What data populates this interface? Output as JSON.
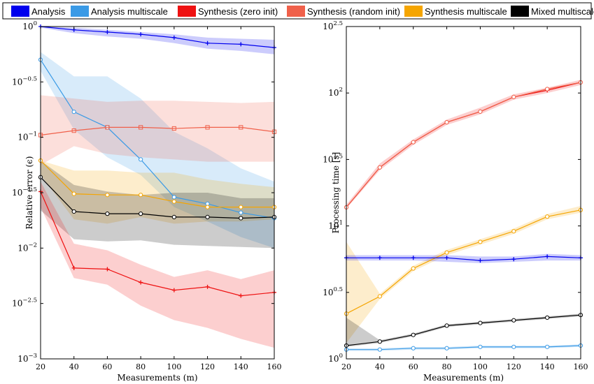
{
  "colors": {
    "analysis": "#0000ee",
    "analysis_multiscale": "#3a9ae6",
    "synthesis_zero": "#ee1111",
    "synthesis_random": "#f0604a",
    "synthesis_multiscale": "#f5a500",
    "mixed_multiscale": "#000000"
  },
  "legend": {
    "items": [
      {
        "key": "analysis",
        "label": "Analysis"
      },
      {
        "key": "analysis_multiscale",
        "label": "Analysis multiscale"
      },
      {
        "key": "synthesis_zero",
        "label": "Synthesis (zero init)"
      },
      {
        "key": "synthesis_random",
        "label": "Synthesis (random init)"
      },
      {
        "key": "synthesis_multiscale",
        "label": "Synthesis multiscale"
      },
      {
        "key": "mixed_multiscale",
        "label": "Mixed multiscale"
      }
    ]
  },
  "chart_data": [
    {
      "type": "line",
      "xlabel": "Measurements (m)",
      "ylabel": "Relative error (ϵ)",
      "xlim": [
        20,
        160
      ],
      "xticks": [
        20,
        40,
        60,
        80,
        100,
        120,
        140,
        160
      ],
      "ylim_log10": [
        -3,
        0
      ],
      "yscale": "log",
      "yticks": [
        {
          "exp": -3,
          "base": "10",
          "sup": "−3"
        },
        {
          "exp": -2.5,
          "base": "10",
          "sup": "−2.5"
        },
        {
          "exp": -2,
          "base": "10",
          "sup": "−2"
        },
        {
          "exp": -1.5,
          "base": "10",
          "sup": "−1.5"
        },
        {
          "exp": -1,
          "base": "10",
          "sup": "−1"
        },
        {
          "exp": -0.5,
          "base": "10",
          "sup": "−0.5"
        },
        {
          "exp": 0,
          "base": "10",
          "sup": "0"
        }
      ],
      "grid": false,
      "x": [
        20,
        40,
        60,
        80,
        100,
        120,
        140,
        160
      ],
      "series": [
        {
          "key": "analysis",
          "marker": "plus",
          "values_log10": [
            0,
            -0.03,
            -0.05,
            -0.07,
            -0.1,
            -0.15,
            -0.16,
            -0.19
          ],
          "band_upper_log10": [
            0,
            -0.01,
            -0.03,
            -0.05,
            -0.07,
            -0.1,
            -0.11,
            -0.12
          ],
          "band_lower_log10": [
            -0.01,
            -0.06,
            -0.09,
            -0.11,
            -0.15,
            -0.2,
            -0.22,
            -0.25
          ]
        },
        {
          "key": "analysis_multiscale",
          "marker": "circle",
          "values_log10": [
            -0.3,
            -0.77,
            -0.91,
            -1.2,
            -1.54,
            -1.6,
            -1.68,
            -1.73
          ],
          "band_upper_log10": [
            -0.23,
            -0.45,
            -0.45,
            -0.65,
            -0.95,
            -1.1,
            -1.28,
            -1.4
          ],
          "band_lower_log10": [
            -0.4,
            -0.93,
            -1.18,
            -1.34,
            -1.63,
            -1.76,
            -1.9,
            -2
          ]
        },
        {
          "key": "synthesis_random",
          "marker": "square",
          "values_log10": [
            -0.98,
            -0.94,
            -0.91,
            -0.91,
            -0.92,
            -0.91,
            -0.91,
            -0.95
          ],
          "band_upper_log10": [
            -0.62,
            -0.65,
            -0.68,
            -0.67,
            -0.67,
            -0.68,
            -0.69,
            -0.68
          ],
          "band_lower_log10": [
            -1.25,
            -1.08,
            -1.15,
            -1.18,
            -1.2,
            -1.22,
            -1.22,
            -1.22
          ]
        },
        {
          "key": "synthesis_multiscale",
          "marker": "circle",
          "values_log10": [
            -1.21,
            -1.51,
            -1.52,
            -1.52,
            -1.58,
            -1.63,
            -1.63,
            -1.63
          ],
          "band_upper_log10": [
            -1.21,
            -1.3,
            -1.3,
            -1.32,
            -1.32,
            -1.38,
            -1.42,
            -1.45
          ],
          "band_lower_log10": [
            -1.34,
            -1.74,
            -1.78,
            -1.72,
            -1.78,
            -1.76,
            -1.76,
            -1.74
          ]
        },
        {
          "key": "mixed_multiscale",
          "marker": "circle",
          "values_log10": [
            -1.36,
            -1.67,
            -1.69,
            -1.69,
            -1.72,
            -1.72,
            -1.73,
            -1.72
          ],
          "band_upper_log10": [
            -1.21,
            -1.43,
            -1.49,
            -1.52,
            -1.5,
            -1.5,
            -1.55,
            -1.55
          ],
          "band_lower_log10": [
            -1.66,
            -1.92,
            -1.94,
            -1.93,
            -1.97,
            -1.98,
            -1.99,
            -2
          ]
        },
        {
          "key": "synthesis_zero",
          "marker": "plus",
          "values_log10": [
            -1.49,
            -2.18,
            -2.19,
            -2.31,
            -2.38,
            -2.35,
            -2.43,
            -2.4
          ],
          "band_upper_log10": [
            -1.4,
            -1.96,
            -2.02,
            -2.15,
            -2.26,
            -2.2,
            -2.28,
            -2.2
          ],
          "band_lower_log10": [
            -1.63,
            -2.27,
            -2.33,
            -2.52,
            -2.65,
            -2.72,
            -2.82,
            -2.9
          ]
        }
      ]
    },
    {
      "type": "line",
      "xlabel": "Measurements (m)",
      "ylabel": "Processing time [s]",
      "xlim": [
        20,
        160
      ],
      "xticks": [
        20,
        40,
        60,
        80,
        100,
        120,
        140,
        160
      ],
      "ylim_log10": [
        0,
        2.5
      ],
      "yscale": "log",
      "yticks": [
        {
          "exp": 0,
          "base": "10",
          "sup": "0"
        },
        {
          "exp": 0.5,
          "base": "10",
          "sup": "0.5"
        },
        {
          "exp": 1,
          "base": "10",
          "sup": "1"
        },
        {
          "exp": 1.5,
          "base": "10",
          "sup": "1.5"
        },
        {
          "exp": 2,
          "base": "10",
          "sup": "2"
        },
        {
          "exp": 2.5,
          "base": "10",
          "sup": "2.5"
        }
      ],
      "grid": false,
      "x": [
        20,
        40,
        60,
        80,
        100,
        120,
        140,
        160
      ],
      "series": [
        {
          "key": "synthesis_zero",
          "marker": "plus",
          "values_log10": [
            1.14,
            1.44,
            1.63,
            1.78,
            1.86,
            1.97,
            2.02,
            2.08
          ],
          "band_upper_log10": [
            1.16,
            1.47,
            1.65,
            1.8,
            1.89,
            1.99,
            2.04,
            2.1
          ],
          "band_lower_log10": [
            1.13,
            1.42,
            1.61,
            1.76,
            1.84,
            1.95,
            2,
            2.06
          ]
        },
        {
          "key": "synthesis_random",
          "marker": "circle",
          "values_log10": [
            1.14,
            1.44,
            1.63,
            1.78,
            1.86,
            1.97,
            2.03,
            2.08
          ],
          "band_upper_log10": [
            1.14,
            1.44,
            1.63,
            1.78,
            1.86,
            1.97,
            2.03,
            2.08
          ],
          "band_lower_log10": [
            1.14,
            1.44,
            1.63,
            1.78,
            1.86,
            1.97,
            2.03,
            2.08
          ]
        },
        {
          "key": "synthesis_multiscale",
          "marker": "circle",
          "values_log10": [
            0.34,
            0.47,
            0.68,
            0.8,
            0.88,
            0.96,
            1.07,
            1.12
          ],
          "band_upper_log10": [
            0.88,
            0.49,
            0.7,
            0.82,
            0.9,
            0.98,
            1.09,
            1.15
          ],
          "band_lower_log10": [
            0.12,
            0.45,
            0.66,
            0.78,
            0.86,
            0.94,
            1.05,
            1.1
          ]
        },
        {
          "key": "analysis",
          "marker": "plus",
          "values_log10": [
            0.76,
            0.76,
            0.76,
            0.76,
            0.74,
            0.75,
            0.77,
            0.76
          ],
          "band_upper_log10": [
            0.78,
            0.78,
            0.78,
            0.78,
            0.77,
            0.77,
            0.79,
            0.78
          ],
          "band_lower_log10": [
            0.74,
            0.74,
            0.74,
            0.73,
            0.72,
            0.73,
            0.74,
            0.74
          ]
        },
        {
          "key": "mixed_multiscale",
          "marker": "circle",
          "values_log10": [
            0.1,
            0.13,
            0.18,
            0.25,
            0.27,
            0.29,
            0.31,
            0.33
          ],
          "band_upper_log10": [
            0.31,
            0.14,
            0.19,
            0.26,
            0.28,
            0.3,
            0.32,
            0.34
          ],
          "band_lower_log10": [
            0.09,
            0.12,
            0.17,
            0.24,
            0.26,
            0.28,
            0.3,
            0.32
          ]
        },
        {
          "key": "analysis_multiscale",
          "marker": "circle",
          "values_log10": [
            0.07,
            0.07,
            0.08,
            0.08,
            0.09,
            0.09,
            0.09,
            0.1
          ],
          "band_upper_log10": [
            0.08,
            0.08,
            0.09,
            0.09,
            0.1,
            0.1,
            0.1,
            0.11
          ],
          "band_lower_log10": [
            0.06,
            0.06,
            0.07,
            0.07,
            0.08,
            0.08,
            0.08,
            0.09
          ]
        }
      ]
    }
  ]
}
